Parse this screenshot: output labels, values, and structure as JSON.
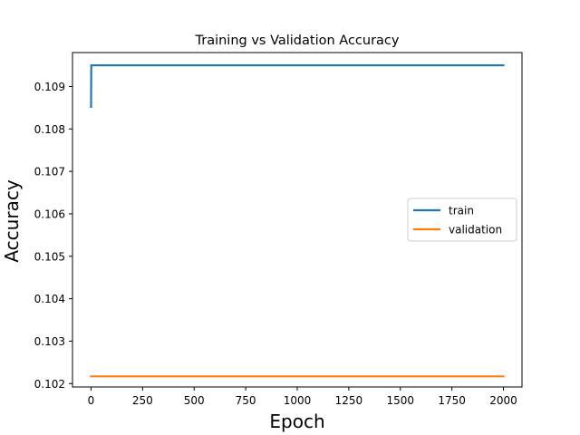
{
  "chart_data": {
    "type": "line",
    "title": "Training vs Validation Accuracy",
    "xlabel": "Epoch",
    "ylabel": "Accuracy",
    "xlim": [
      -90,
      2090
    ],
    "ylim": [
      0.10192,
      0.1098
    ],
    "xticks": [
      0,
      250,
      500,
      750,
      1000,
      1250,
      1500,
      1750,
      2000
    ],
    "yticks": [
      0.102,
      0.103,
      0.104,
      0.105,
      0.106,
      0.107,
      0.108,
      0.109
    ],
    "ytick_labels": [
      "0.102",
      "0.103",
      "0.104",
      "0.105",
      "0.106",
      "0.107",
      "0.108",
      "0.109"
    ],
    "grid": false,
    "legend_position": "center-right",
    "series": [
      {
        "name": "train",
        "color": "#1f77b4",
        "x": [
          0,
          1,
          2000
        ],
        "y": [
          0.10852,
          0.1095,
          0.1095
        ]
      },
      {
        "name": "validation",
        "color": "#ff7f0e",
        "x": [
          0,
          2000
        ],
        "y": [
          0.10217,
          0.10217
        ]
      }
    ]
  }
}
